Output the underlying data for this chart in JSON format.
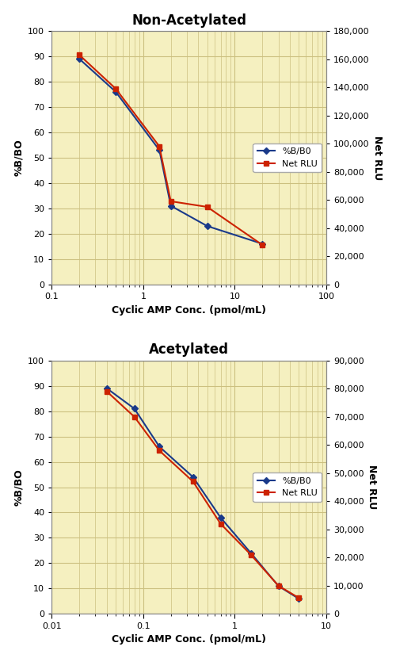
{
  "plot1": {
    "title": "Non-Acetylated",
    "x_bbo": [
      0.2,
      0.5,
      1.5,
      2.0,
      5.0,
      20.0
    ],
    "y_bbo": [
      89,
      76,
      53,
      31,
      23,
      16
    ],
    "x_rlu": [
      0.2,
      0.5,
      1.5,
      2.0,
      5.0,
      20.0
    ],
    "y_rlu": [
      163000,
      139000,
      98000,
      59000,
      55000,
      28000
    ],
    "xlim": [
      0.1,
      100
    ],
    "ylim_left": [
      0,
      100
    ],
    "ylim_right": [
      0,
      180000
    ],
    "right_ticks": [
      0,
      20000,
      40000,
      60000,
      80000,
      100000,
      120000,
      140000,
      160000,
      180000
    ],
    "right_tick_labels": [
      "0",
      "20,000",
      "40,000",
      "60,000",
      "80,000",
      "100,000",
      "120,000",
      "140,000",
      "160,000",
      "180,000"
    ],
    "xlabel": "Cyclic AMP Conc. (pmol/mL)",
    "xticks": [
      0.1,
      1,
      10,
      100
    ],
    "xticklabels": [
      "0.1",
      "1",
      "10",
      "100"
    ]
  },
  "plot2": {
    "title": "Acetylated",
    "x_bbo": [
      0.04,
      0.08,
      0.15,
      0.35,
      0.7,
      1.5,
      3.0,
      5.0
    ],
    "y_bbo": [
      89,
      81,
      66,
      54,
      38,
      24,
      11,
      6
    ],
    "x_rlu": [
      0.04,
      0.08,
      0.15,
      0.35,
      0.7,
      1.5,
      3.0,
      5.0
    ],
    "y_rlu": [
      79000,
      70000,
      58000,
      47000,
      32000,
      21000,
      10000,
      5700
    ],
    "xlim": [
      0.01,
      10
    ],
    "ylim_left": [
      0,
      100
    ],
    "ylim_right": [
      0,
      90000
    ],
    "right_ticks": [
      0,
      10000,
      20000,
      30000,
      40000,
      50000,
      60000,
      70000,
      80000,
      90000
    ],
    "right_tick_labels": [
      "0",
      "10,000",
      "20,000",
      "30,000",
      "40,000",
      "50,000",
      "60,000",
      "70,000",
      "80,000",
      "90,000"
    ],
    "xlabel": "Cyclic AMP Conc. (pmol/mL)",
    "xticks": [
      0.01,
      0.1,
      1,
      10
    ],
    "xticklabels": [
      "0.01",
      "0.1",
      "1",
      "10"
    ]
  },
  "blue_color": "#1a3a8a",
  "red_color": "#cc2200",
  "bg_color": "#f5f0c0",
  "grid_color": "#ccc080",
  "legend_labels": [
    "%B/B0",
    "Net RLU"
  ],
  "ylabel_left": "%B/BO",
  "ylabel_right": "Net RLU"
}
